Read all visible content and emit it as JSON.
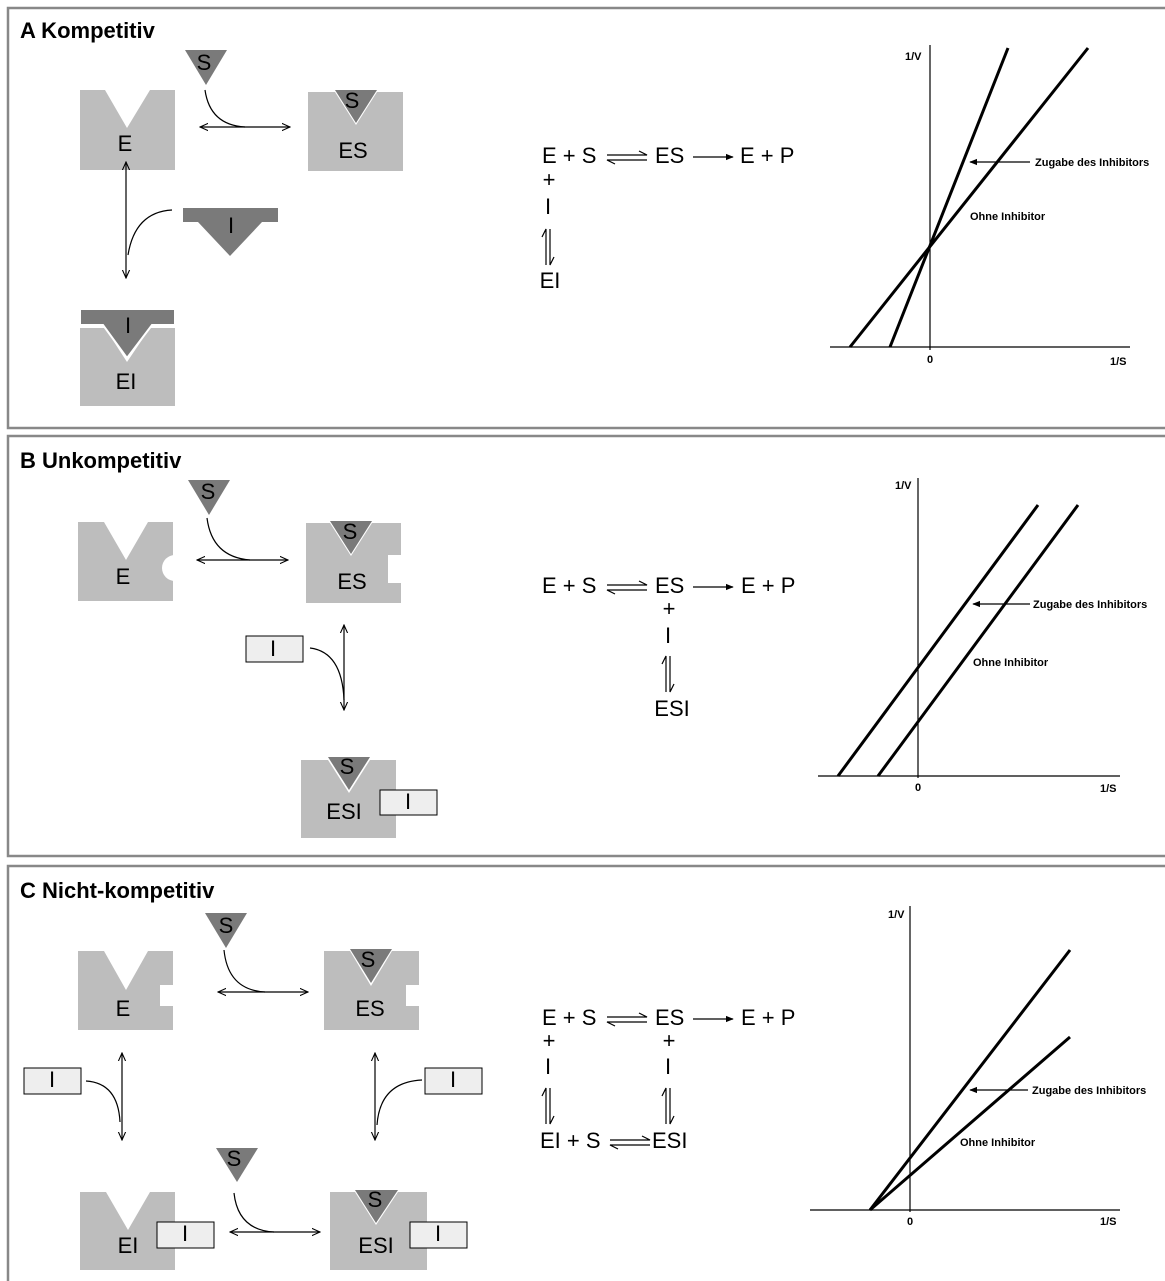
{
  "panels": [
    {
      "title": "A Kompetitiv",
      "diagram": [
        "E",
        "S",
        "S",
        "ES",
        "I",
        "I",
        "EI"
      ],
      "scheme": [
        "E + S",
        "ES",
        "E + P",
        "+",
        "I",
        "EI"
      ],
      "plot": {
        "y_axis": "1/V",
        "x_axis": "1/S",
        "origin": "0",
        "with_inhibitor": "Zugabe des Inhibitors",
        "without_inhibitor": "Ohne Inhibitor"
      }
    },
    {
      "title": "B Unkompetitiv",
      "diagram": [
        "E",
        "S",
        "S",
        "ES",
        "I",
        "S",
        "ESI",
        "I"
      ],
      "scheme": [
        "E + S",
        "ES",
        "E + P",
        "+",
        "I",
        "ESI"
      ],
      "plot": {
        "y_axis": "1/V",
        "x_axis": "1/S",
        "origin": "0",
        "with_inhibitor": "Zugabe des Inhibitors",
        "without_inhibitor": "Ohne Inhibitor"
      }
    },
    {
      "title": "C Nicht-kompetitiv",
      "diagram": [
        "E",
        "S",
        "S",
        "ES",
        "I",
        "I",
        "S",
        "EI",
        "I",
        "S",
        "ESI",
        "I"
      ],
      "scheme": [
        "E + S",
        "ES",
        "E + P",
        "+",
        "I",
        "+",
        "I",
        "EI + S",
        "ESI"
      ],
      "plot": {
        "y_axis": "1/V",
        "x_axis": "1/S",
        "origin": "0",
        "with_inhibitor": "Zugabe des Inhibitors",
        "without_inhibitor": "Ohne Inhibitor"
      }
    }
  ]
}
